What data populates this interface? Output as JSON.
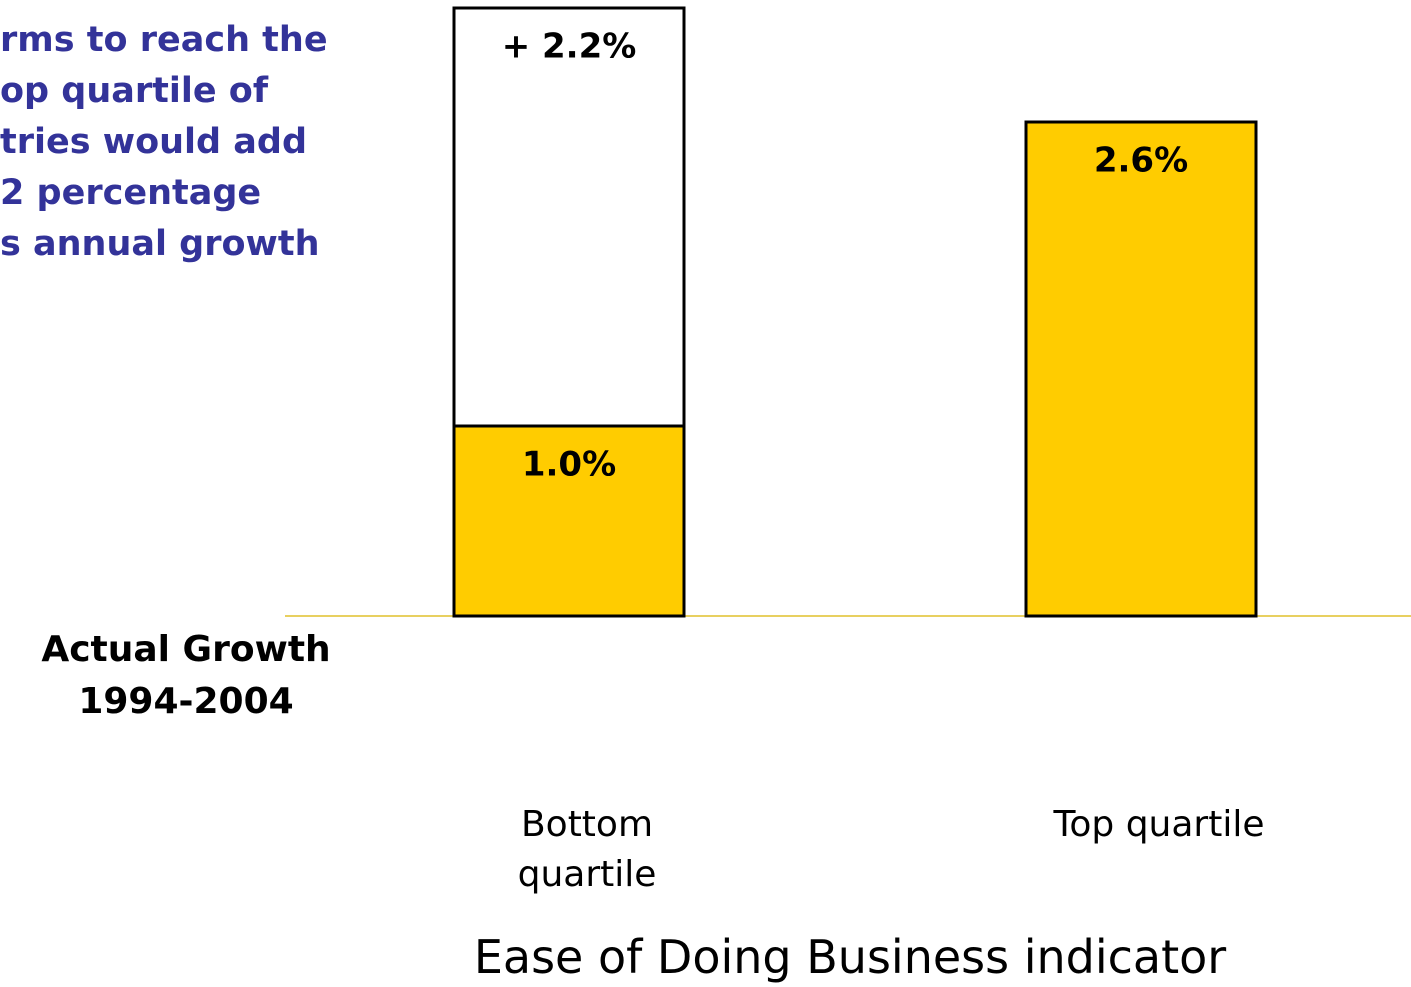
{
  "chart_data": {
    "type": "stacked_bar",
    "annotation": [
      "rms to reach the",
      "op quartile of",
      "tries would add",
      "2 percentage",
      "s annual growth"
    ],
    "ylabel": "Actual Growth 1994-2004",
    "xlabel": "Ease of Doing Business indicator",
    "categories": [
      "Bottom quartile",
      "Top quartile"
    ],
    "series": [
      {
        "color": "#ffcc00",
        "values": [
          1.0,
          2.6
        ],
        "value_labels": [
          "1.0%",
          "2.6%"
        ]
      },
      {
        "color": "#ffffff",
        "values": [
          2.2,
          null
        ],
        "value_labels": [
          "+ 2.2%",
          null
        ]
      }
    ],
    "ylim": [
      0,
      3.2
    ]
  }
}
